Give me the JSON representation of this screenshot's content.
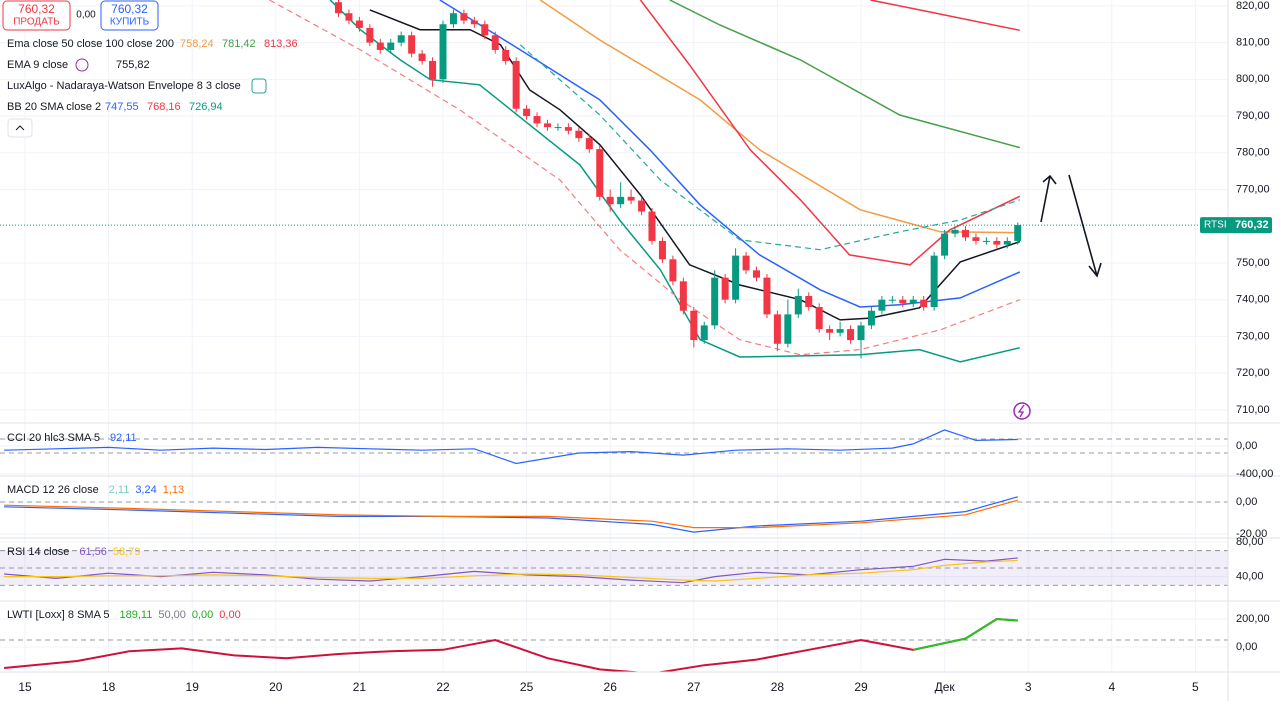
{
  "header": {
    "sell_price": "760,32",
    "sell_label": "ПРОДАТЬ",
    "spread": "0,00",
    "buy_price": "760,32",
    "buy_label": "КУПИТЬ"
  },
  "price_tag": {
    "symbol": "RTSI",
    "value": 760.32,
    "label": "760,32"
  },
  "x_axis": {
    "labels": [
      "15",
      "18",
      "19",
      "20",
      "21",
      "22",
      "25",
      "26",
      "27",
      "28",
      "29",
      "Дек",
      "3",
      "4",
      "5"
    ]
  },
  "chart_data": [
    {
      "type": "candlestick",
      "legend": [
        {
          "title": "Ema close 50 close 100 close 200",
          "values": [
            "758,24",
            "781,42",
            "813,36"
          ],
          "colors": [
            "#f59b42",
            "#43a047",
            "#f23645"
          ]
        },
        {
          "title": "EMA 9 close",
          "values": [
            "755,82"
          ],
          "colors": [
            "#131722"
          ]
        },
        {
          "title": "LuxAlgo - Nadaraya-Watson Envelope 8 3 close",
          "values": [],
          "colors": []
        },
        {
          "title": "BB 20 SMA close 2",
          "values": [
            "747,55",
            "768,16",
            "726,94"
          ],
          "colors": [
            "#2962ff",
            "#f23645",
            "#089981"
          ]
        }
      ],
      "up_color": "#089981",
      "down_color": "#f23645",
      "open": [
        821,
        818,
        816,
        814,
        810,
        808,
        810,
        812,
        807,
        805,
        800,
        815,
        818,
        816,
        815,
        812,
        808,
        805,
        792,
        790,
        788,
        787,
        787,
        786,
        784,
        781,
        768,
        766,
        768,
        767,
        764,
        756,
        751,
        745,
        737,
        729,
        733,
        746,
        740,
        752,
        748,
        746,
        736,
        728,
        736,
        741,
        738,
        732,
        731,
        732,
        729,
        733,
        737,
        740,
        740,
        739,
        740,
        738,
        752,
        758,
        759,
        757,
        756,
        756,
        755,
        756
      ],
      "high": [
        822,
        819,
        817,
        815,
        811,
        811,
        813,
        813,
        808,
        806,
        816,
        819,
        819,
        817,
        816,
        813,
        809,
        806,
        793,
        791,
        789,
        788,
        788,
        787,
        785,
        782,
        770,
        772,
        770,
        768,
        765,
        757,
        752,
        746,
        738,
        734,
        748,
        747,
        754,
        753,
        749,
        747,
        737,
        740,
        743,
        742,
        739,
        733,
        734,
        733,
        734,
        738,
        741,
        741,
        741,
        741,
        741,
        753,
        759,
        760,
        760,
        758,
        757,
        757,
        757,
        761
      ],
      "low": [
        817,
        815,
        813,
        809,
        807,
        807,
        809,
        806,
        804,
        798,
        799,
        814,
        815,
        814,
        811,
        807,
        804,
        791,
        789,
        787,
        786,
        786,
        785,
        783,
        780,
        767,
        764,
        765,
        766,
        763,
        755,
        750,
        744,
        736,
        727,
        728,
        732,
        739,
        739,
        747,
        745,
        735,
        726,
        727,
        735,
        737,
        731,
        729,
        730,
        728,
        724,
        732,
        736,
        739,
        738,
        738,
        737,
        737,
        751,
        757,
        756,
        755,
        755,
        754,
        754,
        755
      ],
      "close": [
        818,
        816,
        814,
        810,
        808,
        810,
        812,
        807,
        805,
        800,
        815,
        818,
        816,
        815,
        812,
        808,
        805,
        792,
        790,
        788,
        787,
        787,
        786,
        784,
        781,
        768,
        766,
        768,
        767,
        764,
        756,
        751,
        745,
        737,
        729,
        733,
        746,
        740,
        752,
        748,
        746,
        736,
        728,
        736,
        741,
        738,
        732,
        731,
        732,
        729,
        733,
        737,
        740,
        740,
        739,
        740,
        738,
        752,
        758,
        759,
        757,
        756,
        756,
        755,
        756,
        760.32
      ],
      "lines": [
        {
          "color": "#f23645",
          "style": "solid",
          "x": [
            80.9,
            85.6,
            95.2
          ],
          "values": [
            821.6,
            818.9,
            813.36
          ]
        },
        {
          "color": "#43a047",
          "style": "solid",
          "x": [
            61.7,
            66.5,
            74.2,
            83.7,
            95.2
          ],
          "values": [
            821.6,
            814.8,
            805.3,
            790.3,
            781.42
          ]
        },
        {
          "color": "#f59b42",
          "style": "solid",
          "x": [
            49.3,
            55.0,
            64.6,
            70.3,
            79.9,
            87.6,
            95.2
          ],
          "values": [
            821.6,
            810.7,
            794.4,
            780.8,
            764.5,
            758.5,
            758.24
          ]
        },
        {
          "color": "#f23645",
          "style": "solid",
          "x": [
            58.9,
            63.6,
            69.4,
            74.2,
            78.9,
            84.7,
            88.5,
            95.2
          ],
          "values": [
            821.6,
            803.9,
            780.8,
            767.2,
            752.2,
            749.5,
            759.0,
            768.16
          ]
        },
        {
          "color": "#2962ff",
          "style": "solid",
          "x": [
            39.7,
            47.4,
            55.0,
            59.8,
            64.6,
            70.3,
            76.1,
            79.9,
            83.7,
            89.5,
            95.2
          ],
          "values": [
            821.6,
            808.0,
            794.4,
            780.8,
            765.8,
            752.2,
            742.7,
            738.0,
            738.6,
            740.5,
            747.55
          ]
        },
        {
          "color": "#089981",
          "style": "solid",
          "x": [
            29.2,
            32.1,
            35.9,
            38.8,
            43.5,
            48.3,
            53.1,
            56.9,
            60.8,
            64.6,
            68.4,
            74.2,
            79.9,
            85.6,
            89.5,
            95.2
          ],
          "values": [
            821.6,
            813.5,
            805.3,
            799.9,
            798.5,
            787.6,
            776.7,
            761.7,
            748.1,
            729.1,
            724.4,
            724.7,
            725.0,
            726.4,
            723.1,
            726.94
          ]
        },
        {
          "color": "#131722",
          "style": "solid",
          "x": [
            33.0,
            37.8,
            42.6,
            45.5,
            48.3,
            51.2,
            55.0,
            58.9,
            63.6,
            68.4,
            74.2,
            78.0,
            80.9,
            85.6,
            89.5,
            95.2
          ],
          "values": [
            818.9,
            813.5,
            813.5,
            809.4,
            797.1,
            791.7,
            782.2,
            768.5,
            749.5,
            744.0,
            740.0,
            734.5,
            735.0,
            737.8,
            750.3,
            755.82
          ]
        },
        {
          "color": "#26a69a",
          "style": "dashed",
          "x": [
            47.4,
            55.0,
            60.8,
            68.4,
            76.1,
            83.7,
            89.5,
            95.2
          ],
          "values": [
            809.4,
            790.3,
            772.6,
            756.3,
            753.6,
            758.5,
            761.7,
            767.2
          ]
        },
        {
          "color": "#f77c80",
          "style": "dashed",
          "x": [
            23.4,
            32.1,
            41.6,
            51.2,
            56.9,
            62.7,
            68.4,
            74.2,
            79.9,
            87.6,
            95.2
          ],
          "values": [
            821.6,
            808.0,
            791.7,
            772.6,
            753.6,
            740.0,
            729.1,
            725.0,
            726.4,
            731.8,
            740.0
          ]
        }
      ],
      "ylim": [
        706.7,
        821.6
      ],
      "yticks": [
        {
          "value": 820,
          "label": "820,00"
        },
        {
          "value": 810,
          "label": "810,00"
        },
        {
          "value": 800,
          "label": "800,00"
        },
        {
          "value": 790,
          "label": "790,00"
        },
        {
          "value": 780,
          "label": "780,00"
        },
        {
          "value": 770,
          "label": "770,00"
        },
        {
          "value": 750,
          "label": "750,00"
        },
        {
          "value": 740,
          "label": "740,00"
        },
        {
          "value": 730,
          "label": "730,00"
        },
        {
          "value": 720,
          "label": "720,00"
        },
        {
          "value": 710,
          "label": "710,00"
        }
      ],
      "grid": true
    },
    {
      "type": "line",
      "title": "CCI 20 hlc3 SMA 5",
      "legend_values": [
        "92,11"
      ],
      "legend_colors": [
        "#2962ff"
      ],
      "ylim": [
        -429,
        314
      ],
      "yticks": [
        {
          "value": 0,
          "label": "0,00"
        },
        {
          "value": -400,
          "label": "-400,00"
        }
      ],
      "levels": [
        100,
        -100
      ],
      "band": false,
      "series": [
        {
          "color": "#2962ff",
          "x": [
            -2,
            3,
            8,
            13,
            18,
            23,
            28,
            33,
            38,
            43,
            47,
            53,
            58,
            63,
            68,
            73,
            78,
            83,
            85,
            88,
            91,
            95
          ],
          "values": [
            -60,
            -40,
            -20,
            -60,
            -30,
            -50,
            -20,
            -40,
            -60,
            -40,
            -250,
            -100,
            -80,
            -130,
            -60,
            -40,
            -60,
            -30,
            30,
            229,
            80,
            92.11
          ]
        }
      ]
    },
    {
      "type": "line",
      "title": "MACD 12 26 close",
      "legend_values": [
        "2,11",
        "3,24",
        "1,13"
      ],
      "legend_colors": [
        "#80cbc4",
        "#2962ff",
        "#ff6d00"
      ],
      "ylim": [
        -22.5,
        16.25
      ],
      "yticks": [
        {
          "value": 0,
          "label": "0,00"
        },
        {
          "value": -20,
          "label": "-20,00"
        }
      ],
      "levels": [
        0
      ],
      "band": false,
      "series": [
        {
          "color": "#2962ff",
          "x": [
            -2,
            10,
            20,
            30,
            40,
            50,
            60,
            64,
            70,
            80,
            90,
            95
          ],
          "values": [
            -3,
            -5,
            -7,
            -9,
            -9,
            -10,
            -14,
            -18.8,
            -15,
            -12,
            -6,
            3.24
          ]
        },
        {
          "color": "#ff6d00",
          "x": [
            -2,
            10,
            20,
            30,
            40,
            50,
            60,
            64,
            70,
            80,
            90,
            95
          ],
          "values": [
            -2,
            -4,
            -6,
            -8,
            -9,
            -9,
            -12,
            -16,
            -16,
            -13,
            -8,
            1.13
          ]
        }
      ]
    },
    {
      "type": "line",
      "title": "RSI 14 close",
      "legend_values": [
        "61,56",
        "58,79"
      ],
      "legend_colors": [
        "#7e57c2",
        "#f5c518"
      ],
      "ylim": [
        11.8,
        84.7
      ],
      "yticks": [
        {
          "value": 80,
          "label": "80,00"
        },
        {
          "value": 40,
          "label": "40,00"
        }
      ],
      "levels": [
        70,
        50,
        30
      ],
      "band": true,
      "series": [
        {
          "color": "#7e57c2",
          "x": [
            -2,
            3,
            8,
            13,
            18,
            23,
            28,
            33,
            38,
            43,
            48,
            53,
            58,
            63,
            66,
            70,
            75,
            80,
            85,
            88,
            92,
            95
          ],
          "values": [
            43,
            38,
            44,
            40,
            45,
            42,
            37,
            35,
            40,
            46,
            42,
            40,
            36,
            33,
            40,
            45,
            42,
            48,
            52,
            60,
            58,
            61.56
          ]
        },
        {
          "color": "#f5c518",
          "x": [
            -2,
            3,
            8,
            13,
            18,
            23,
            28,
            33,
            38,
            43,
            48,
            53,
            58,
            63,
            66,
            70,
            75,
            80,
            85,
            88,
            92,
            95
          ],
          "values": [
            40,
            40,
            41,
            41,
            42,
            41,
            39,
            38,
            38,
            41,
            43,
            42,
            39,
            36,
            35,
            38,
            42,
            44,
            48,
            53,
            57,
            58.79
          ]
        }
      ]
    },
    {
      "type": "line",
      "title": "LWTI [Loxx] 8 SMA 5",
      "legend_values": [
        "189,11",
        "50,00",
        "0,00",
        "0,00"
      ],
      "legend_colors": [
        "#22ab22",
        "#787b86",
        "#22ab22",
        "#f23645"
      ],
      "ylim": [
        -178.6,
        328.6
      ],
      "yticks": [
        {
          "value": 200,
          "label": "200,00"
        },
        {
          "value": 0,
          "label": "0,00"
        }
      ],
      "levels": [
        50
      ],
      "band": false,
      "series": [
        {
          "color": "#d0103a",
          "color_above": "#22c322",
          "x": [
            -2,
            5,
            10,
            15,
            20,
            25,
            30,
            35,
            40,
            45,
            50,
            55,
            60,
            65,
            70,
            75,
            80,
            85,
            90,
            93,
            95
          ],
          "values": [
            -150,
            -100,
            -30,
            -10,
            -60,
            -80,
            -50,
            -30,
            -20,
            50,
            -80,
            -160,
            -190,
            -130,
            -90,
            -20,
            50,
            -20,
            60,
            200,
            189.11
          ]
        }
      ]
    }
  ]
}
